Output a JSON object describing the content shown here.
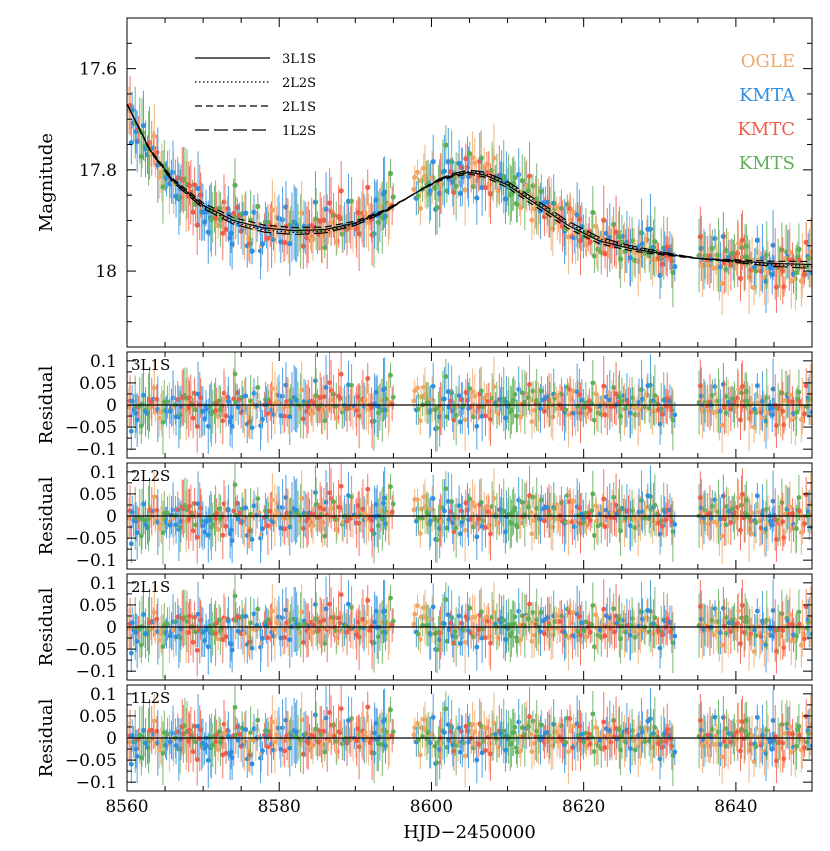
{
  "chart_data": {
    "type": "scatter",
    "xlabel": "HJD−2450000",
    "xlim": [
      8560,
      8650
    ],
    "x_ticks": [
      "8560",
      "8580",
      "8600",
      "8620",
      "8640"
    ],
    "datasets": [
      {
        "name": "OGLE",
        "color": "#f0a868"
      },
      {
        "name": "KMTA",
        "color": "#2f8fe0"
      },
      {
        "name": "KMTC",
        "color": "#f25c4a"
      },
      {
        "name": "KMTS",
        "color": "#5fae5a"
      }
    ],
    "observing_gaps": [
      [
        8595,
        8597.5
      ],
      [
        8632,
        8635
      ]
    ],
    "main_panel": {
      "ylabel": "Magnitude",
      "ylim": [
        18.15,
        17.5
      ],
      "y_ticks": [
        "17.6",
        "17.8",
        "18"
      ],
      "models": [
        {
          "name": "3L1S",
          "dash": "solid"
        },
        {
          "name": "2L2S",
          "dash": "dotted"
        },
        {
          "name": "2L1S",
          "dash": "dashed"
        },
        {
          "name": "1L2S",
          "dash": "longdash"
        }
      ],
      "model_curve": {
        "x": [
          8560,
          8563,
          8566,
          8570,
          8574,
          8578,
          8582,
          8586,
          8590,
          8594,
          8598,
          8601,
          8603,
          8605,
          8607,
          8610,
          8614,
          8618,
          8622,
          8626,
          8630,
          8635,
          8640,
          8645,
          8650
        ],
        "y": [
          17.67,
          17.76,
          17.82,
          17.87,
          17.9,
          17.915,
          17.92,
          17.918,
          17.905,
          17.88,
          17.845,
          17.82,
          17.81,
          17.805,
          17.81,
          17.83,
          17.87,
          17.91,
          17.94,
          17.955,
          17.965,
          17.975,
          17.98,
          17.985,
          17.987
        ]
      }
    },
    "residual_panels": [
      {
        "label": "3L1S",
        "ylabel": "Residual",
        "ylim": [
          -0.12,
          0.12
        ],
        "y_ticks": [
          "0.1",
          "0.05",
          "0",
          "−0.05",
          "−0.1"
        ]
      },
      {
        "label": "2L2S",
        "ylabel": "Residual",
        "ylim": [
          -0.12,
          0.12
        ],
        "y_ticks": [
          "0.1",
          "0.05",
          "0",
          "−0.05",
          "−0.1"
        ]
      },
      {
        "label": "2L1S",
        "ylabel": "Residual",
        "ylim": [
          -0.12,
          0.12
        ],
        "y_ticks": [
          "0.1",
          "0.05",
          "0",
          "−0.05",
          "−0.1"
        ]
      },
      {
        "label": "1L2S",
        "ylabel": "Residual",
        "ylim": [
          -0.12,
          0.12
        ],
        "y_ticks": [
          "0.1",
          "0.05",
          "0",
          "−0.05",
          "−0.1"
        ]
      }
    ]
  }
}
